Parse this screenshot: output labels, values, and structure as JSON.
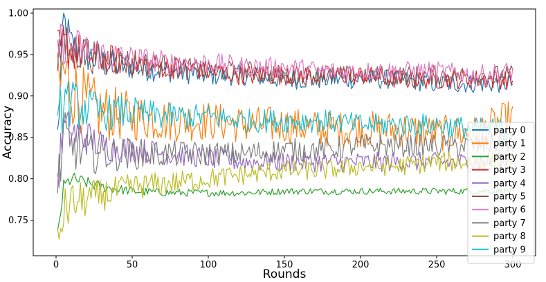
{
  "chart_data": {
    "type": "line",
    "title": "",
    "xlabel": "Rounds",
    "ylabel": "Accuracy",
    "xlim": [
      -15,
      315
    ],
    "ylim": [
      0.707,
      1.005
    ],
    "x_ticks": [
      0,
      50,
      100,
      150,
      200,
      250,
      300
    ],
    "x_tick_labels": [
      "0",
      "50",
      "100",
      "150",
      "200",
      "250",
      "300"
    ],
    "y_ticks": [
      0.75,
      0.8,
      0.85,
      0.9,
      0.95,
      1.0
    ],
    "y_tick_labels": [
      "0.75",
      "0.80",
      "0.85",
      "0.90",
      "0.95",
      "1.00"
    ],
    "grid": false,
    "legend_position": "right",
    "x": [
      1,
      5,
      10,
      20,
      30,
      50,
      75,
      100,
      125,
      150,
      175,
      200,
      225,
      250,
      275,
      300
    ],
    "series": [
      {
        "name": "party 0",
        "color": "#1f77b4",
        "values": [
          0.85,
          0.99,
          0.96,
          0.95,
          0.94,
          0.935,
          0.93,
          0.925,
          0.925,
          0.92,
          0.92,
          0.92,
          0.92,
          0.915,
          0.915,
          0.915
        ]
      },
      {
        "name": "party 1",
        "color": "#ff7f0e",
        "values": [
          0.9,
          0.93,
          0.91,
          0.89,
          0.88,
          0.875,
          0.87,
          0.87,
          0.865,
          0.865,
          0.86,
          0.86,
          0.86,
          0.855,
          0.855,
          0.875
        ]
      },
      {
        "name": "party 2",
        "color": "#2ca02c",
        "values": [
          0.73,
          0.79,
          0.8,
          0.795,
          0.79,
          0.785,
          0.783,
          0.783,
          0.783,
          0.785,
          0.785,
          0.785,
          0.785,
          0.785,
          0.785,
          0.785
        ]
      },
      {
        "name": "party 3",
        "color": "#d62728",
        "values": [
          0.95,
          0.96,
          0.955,
          0.95,
          0.945,
          0.94,
          0.935,
          0.93,
          0.925,
          0.925,
          0.925,
          0.925,
          0.92,
          0.92,
          0.92,
          0.92
        ]
      },
      {
        "name": "party 4",
        "color": "#9467bd",
        "values": [
          0.8,
          0.86,
          0.855,
          0.85,
          0.84,
          0.835,
          0.83,
          0.825,
          0.82,
          0.82,
          0.82,
          0.82,
          0.82,
          0.82,
          0.82,
          0.825
        ]
      },
      {
        "name": "party 5",
        "color": "#8c564b",
        "values": [
          0.95,
          0.96,
          0.955,
          0.95,
          0.945,
          0.94,
          0.935,
          0.93,
          0.93,
          0.925,
          0.925,
          0.925,
          0.925,
          0.925,
          0.925,
          0.925
        ]
      },
      {
        "name": "party 6",
        "color": "#e377c2",
        "values": [
          0.96,
          0.965,
          0.96,
          0.955,
          0.95,
          0.945,
          0.94,
          0.94,
          0.935,
          0.935,
          0.93,
          0.93,
          0.93,
          0.93,
          0.925,
          0.93
        ]
      },
      {
        "name": "party 7",
        "color": "#7f7f7f",
        "values": [
          0.79,
          0.85,
          0.84,
          0.83,
          0.83,
          0.83,
          0.83,
          0.83,
          0.83,
          0.835,
          0.835,
          0.84,
          0.84,
          0.84,
          0.84,
          0.845
        ]
      },
      {
        "name": "party 8",
        "color": "#bcbd22",
        "values": [
          0.72,
          0.76,
          0.77,
          0.775,
          0.78,
          0.79,
          0.795,
          0.8,
          0.805,
          0.81,
          0.81,
          0.815,
          0.815,
          0.82,
          0.82,
          0.825
        ]
      },
      {
        "name": "party 9",
        "color": "#17becf",
        "values": [
          0.85,
          0.9,
          0.89,
          0.885,
          0.88,
          0.88,
          0.875,
          0.875,
          0.87,
          0.87,
          0.87,
          0.865,
          0.865,
          0.865,
          0.86,
          0.86
        ]
      }
    ]
  }
}
